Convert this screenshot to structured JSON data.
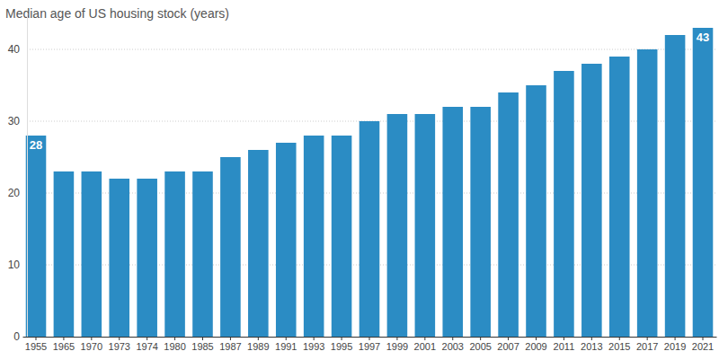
{
  "chart_data": {
    "type": "bar",
    "title": "Median age of US housing stock (years)",
    "categories": [
      "1955",
      "1965",
      "1970",
      "1973",
      "1974",
      "1980",
      "1985",
      "1987",
      "1989",
      "1991",
      "1993",
      "1995",
      "1997",
      "1999",
      "2001",
      "2003",
      "2005",
      "2007",
      "2009",
      "2011",
      "2013",
      "2015",
      "2017",
      "2019",
      "2021"
    ],
    "values": [
      28,
      23,
      23,
      22,
      22,
      23,
      23,
      25,
      26,
      27,
      28,
      28,
      30,
      31,
      31,
      32,
      32,
      34,
      35,
      37,
      38,
      39,
      40,
      42,
      43
    ],
    "data_labels": true,
    "value_labels": [
      "28",
      null,
      null,
      null,
      null,
      null,
      null,
      null,
      null,
      null,
      null,
      null,
      null,
      null,
      null,
      null,
      null,
      null,
      null,
      null,
      null,
      null,
      null,
      null,
      "43"
    ],
    "color": "#2b8cc4",
    "ylim": [
      0,
      45
    ],
    "yticks": [
      0,
      10,
      20,
      30,
      40
    ],
    "grid": true
  }
}
